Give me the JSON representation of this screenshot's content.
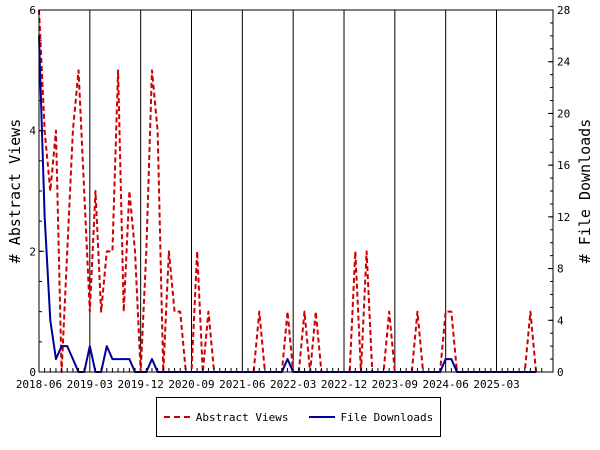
{
  "chart_data": {
    "type": "line",
    "title": "",
    "ylabel": "# Abstract Views",
    "y2label": "# File Downloads",
    "ylim": [
      0,
      6
    ],
    "y2lim": [
      0,
      28
    ],
    "yticks": [
      0,
      2,
      4,
      6
    ],
    "y2ticks": [
      0,
      4,
      8,
      12,
      16,
      20,
      24,
      28
    ],
    "xlim": [
      "2018-06",
      "2026-01"
    ],
    "xticks": [
      "2018-06",
      "2019-03",
      "2019-12",
      "2020-09",
      "2021-06",
      "2022-03",
      "2022-12",
      "2023-09",
      "2024-06",
      "2025-03"
    ],
    "legend_position": "bottom",
    "colors": {
      "views": "#cc0000",
      "downloads": "#000099"
    },
    "series": [
      {
        "name": "Abstract Views",
        "axis": "left",
        "style": "dashed",
        "color": "#cc0000",
        "points": [
          [
            "2018-06",
            6
          ],
          [
            "2018-07",
            4
          ],
          [
            "2018-08",
            3
          ],
          [
            "2018-09",
            4
          ],
          [
            "2018-10",
            0
          ],
          [
            "2018-11",
            2
          ],
          [
            "2018-12",
            4
          ],
          [
            "2019-01",
            5
          ],
          [
            "2019-02",
            3
          ],
          [
            "2019-03",
            1
          ],
          [
            "2019-04",
            3
          ],
          [
            "2019-05",
            1
          ],
          [
            "2019-06",
            2
          ],
          [
            "2019-07",
            2
          ],
          [
            "2019-08",
            5
          ],
          [
            "2019-09",
            1
          ],
          [
            "2019-10",
            3
          ],
          [
            "2019-11",
            2
          ],
          [
            "2019-12",
            0
          ],
          [
            "2020-01",
            2
          ],
          [
            "2020-02",
            5
          ],
          [
            "2020-03",
            4
          ],
          [
            "2020-04",
            0
          ],
          [
            "2020-05",
            2
          ],
          [
            "2020-06",
            1
          ],
          [
            "2020-07",
            1
          ],
          [
            "2020-08",
            0
          ],
          [
            "2020-09",
            0
          ],
          [
            "2020-10",
            2
          ],
          [
            "2020-11",
            0
          ],
          [
            "2020-12",
            1
          ],
          [
            "2021-01",
            0
          ],
          [
            "2021-02",
            0
          ],
          [
            "2021-03",
            0
          ],
          [
            "2021-04",
            0
          ],
          [
            "2021-05",
            0
          ],
          [
            "2021-06",
            0
          ],
          [
            "2021-07",
            0
          ],
          [
            "2021-08",
            0
          ],
          [
            "2021-09",
            1
          ],
          [
            "2021-10",
            0
          ],
          [
            "2021-11",
            0
          ],
          [
            "2021-12",
            0
          ],
          [
            "2022-01",
            0
          ],
          [
            "2022-02",
            1
          ],
          [
            "2022-03",
            0
          ],
          [
            "2022-04",
            0
          ],
          [
            "2022-05",
            1
          ],
          [
            "2022-06",
            0
          ],
          [
            "2022-07",
            1
          ],
          [
            "2022-08",
            0
          ],
          [
            "2022-09",
            0
          ],
          [
            "2022-10",
            0
          ],
          [
            "2022-11",
            0
          ],
          [
            "2022-12",
            0
          ],
          [
            "2023-01",
            0
          ],
          [
            "2023-02",
            2
          ],
          [
            "2023-03",
            0
          ],
          [
            "2023-04",
            2
          ],
          [
            "2023-05",
            0
          ],
          [
            "2023-06",
            0
          ],
          [
            "2023-07",
            0
          ],
          [
            "2023-08",
            1
          ],
          [
            "2023-09",
            0
          ],
          [
            "2023-10",
            0
          ],
          [
            "2023-11",
            0
          ],
          [
            "2023-12",
            0
          ],
          [
            "2024-01",
            1
          ],
          [
            "2024-02",
            0
          ],
          [
            "2024-03",
            0
          ],
          [
            "2024-04",
            0
          ],
          [
            "2024-05",
            0
          ],
          [
            "2024-06",
            1
          ],
          [
            "2024-07",
            1
          ],
          [
            "2024-08",
            0
          ],
          [
            "2024-09",
            0
          ],
          [
            "2024-10",
            0
          ],
          [
            "2024-11",
            0
          ],
          [
            "2024-12",
            0
          ],
          [
            "2025-01",
            0
          ],
          [
            "2025-02",
            0
          ],
          [
            "2025-03",
            0
          ],
          [
            "2025-04",
            0
          ],
          [
            "2025-05",
            0
          ],
          [
            "2025-06",
            0
          ],
          [
            "2025-07",
            0
          ],
          [
            "2025-08",
            0
          ],
          [
            "2025-09",
            1
          ],
          [
            "2025-10",
            0
          ]
        ]
      },
      {
        "name": "File Downloads",
        "axis": "right",
        "style": "solid",
        "color": "#000099",
        "points": [
          [
            "2018-06",
            26
          ],
          [
            "2018-07",
            12
          ],
          [
            "2018-08",
            4
          ],
          [
            "2018-09",
            1
          ],
          [
            "2018-10",
            2
          ],
          [
            "2018-11",
            2
          ],
          [
            "2018-12",
            1
          ],
          [
            "2019-01",
            0
          ],
          [
            "2019-02",
            0
          ],
          [
            "2019-03",
            2
          ],
          [
            "2019-04",
            0
          ],
          [
            "2019-05",
            0
          ],
          [
            "2019-06",
            2
          ],
          [
            "2019-07",
            1
          ],
          [
            "2019-08",
            1
          ],
          [
            "2019-09",
            1
          ],
          [
            "2019-10",
            1
          ],
          [
            "2019-11",
            0
          ],
          [
            "2019-12",
            0
          ],
          [
            "2020-01",
            0
          ],
          [
            "2020-02",
            1
          ],
          [
            "2020-03",
            0
          ],
          [
            "2020-04",
            0
          ],
          [
            "2020-05",
            0
          ],
          [
            "2020-06",
            0
          ],
          [
            "2020-07",
            0
          ],
          [
            "2020-08",
            0
          ],
          [
            "2020-09",
            0
          ],
          [
            "2020-10",
            0
          ],
          [
            "2020-11",
            0
          ],
          [
            "2020-12",
            0
          ],
          [
            "2021-01",
            0
          ],
          [
            "2021-02",
            0
          ],
          [
            "2021-03",
            0
          ],
          [
            "2021-04",
            0
          ],
          [
            "2021-05",
            0
          ],
          [
            "2021-06",
            0
          ],
          [
            "2021-07",
            0
          ],
          [
            "2021-08",
            0
          ],
          [
            "2021-09",
            0
          ],
          [
            "2021-10",
            0
          ],
          [
            "2021-11",
            0
          ],
          [
            "2021-12",
            0
          ],
          [
            "2022-01",
            0
          ],
          [
            "2022-02",
            1
          ],
          [
            "2022-03",
            0
          ],
          [
            "2022-04",
            0
          ],
          [
            "2022-05",
            0
          ],
          [
            "2022-06",
            0
          ],
          [
            "2022-07",
            0
          ],
          [
            "2022-08",
            0
          ],
          [
            "2022-09",
            0
          ],
          [
            "2022-10",
            0
          ],
          [
            "2022-11",
            0
          ],
          [
            "2022-12",
            0
          ],
          [
            "2023-01",
            0
          ],
          [
            "2023-02",
            0
          ],
          [
            "2023-03",
            0
          ],
          [
            "2023-04",
            0
          ],
          [
            "2023-05",
            0
          ],
          [
            "2023-06",
            0
          ],
          [
            "2023-07",
            0
          ],
          [
            "2023-08",
            0
          ],
          [
            "2023-09",
            0
          ],
          [
            "2023-10",
            0
          ],
          [
            "2023-11",
            0
          ],
          [
            "2023-12",
            0
          ],
          [
            "2024-01",
            0
          ],
          [
            "2024-02",
            0
          ],
          [
            "2024-03",
            0
          ],
          [
            "2024-04",
            0
          ],
          [
            "2024-05",
            0
          ],
          [
            "2024-06",
            1
          ],
          [
            "2024-07",
            1
          ],
          [
            "2024-08",
            0
          ],
          [
            "2024-09",
            0
          ],
          [
            "2024-10",
            0
          ],
          [
            "2024-11",
            0
          ],
          [
            "2024-12",
            0
          ],
          [
            "2025-01",
            0
          ],
          [
            "2025-02",
            0
          ],
          [
            "2025-03",
            0
          ],
          [
            "2025-04",
            0
          ],
          [
            "2025-05",
            0
          ],
          [
            "2025-06",
            0
          ],
          [
            "2025-07",
            0
          ],
          [
            "2025-08",
            0
          ],
          [
            "2025-09",
            0
          ],
          [
            "2025-10",
            0
          ]
        ]
      }
    ]
  }
}
